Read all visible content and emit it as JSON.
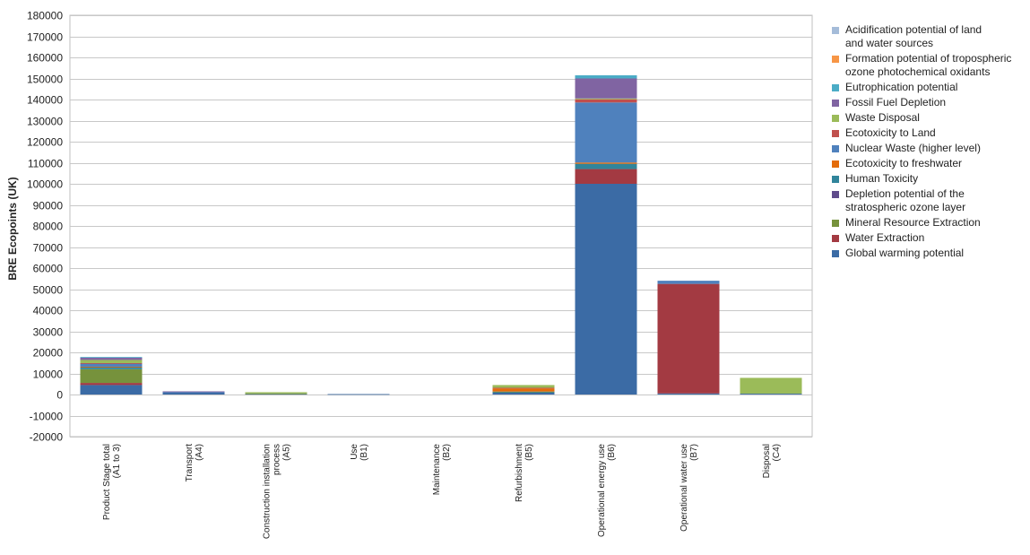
{
  "chart_data": {
    "type": "bar",
    "stacked": true,
    "ylabel": "BRE Ecopoints (UK)",
    "xlabel": "",
    "ylim": [
      -20000,
      180000
    ],
    "ytick_step": 10000,
    "grid": true,
    "legend_position": "right",
    "categories": [
      [
        "Product Stage total",
        "(A1 to 3)"
      ],
      [
        "Transport",
        "(A4)"
      ],
      [
        "Construction installation",
        "process",
        "(A5)"
      ],
      [
        "Use",
        "(B1)"
      ],
      [
        "Maintenance",
        "(B2)"
      ],
      [
        "Refurbishment",
        "(B5)"
      ],
      [
        "Operational energy use",
        "(B6)"
      ],
      [
        "Operational water use",
        "(B7)"
      ],
      [
        "Disposal",
        "(C4)"
      ]
    ],
    "series": [
      {
        "name": "Global warming potential",
        "color": "#3b6ba5",
        "values": [
          4500,
          1000,
          300,
          200,
          0,
          1000,
          100000,
          500,
          400
        ]
      },
      {
        "name": "Water Extraction",
        "color": "#a33a42",
        "values": [
          1000,
          0,
          0,
          0,
          0,
          0,
          7000,
          52000,
          0
        ]
      },
      {
        "name": "Mineral Resource Extraction",
        "color": "#76923c",
        "values": [
          6500,
          0,
          200,
          0,
          0,
          200,
          0,
          0,
          0
        ]
      },
      {
        "name": "Depletion potential of the\nstratospheric ozone layer",
        "color": "#5f4b8b",
        "values": [
          0,
          0,
          0,
          0,
          0,
          0,
          0,
          0,
          0
        ]
      },
      {
        "name": "Human Toxicity",
        "color": "#31859b",
        "values": [
          1000,
          0,
          0,
          0,
          0,
          200,
          2500,
          0,
          0
        ]
      },
      {
        "name": "Ecotoxicity to freshwater",
        "color": "#e46c0a",
        "values": [
          200,
          0,
          0,
          0,
          0,
          1500,
          600,
          0,
          0
        ]
      },
      {
        "name": "Nuclear Waste (higher level)",
        "color": "#4f81bd",
        "values": [
          1500,
          300,
          0,
          0,
          0,
          0,
          28500,
          1500,
          0
        ]
      },
      {
        "name": "Ecotoxicity to Land",
        "color": "#c0504d",
        "values": [
          200,
          0,
          0,
          0,
          0,
          300,
          1500,
          0,
          0
        ]
      },
      {
        "name": "Waste Disposal",
        "color": "#9bbb59",
        "values": [
          1500,
          0,
          600,
          0,
          0,
          1300,
          400,
          0,
          7500
        ]
      },
      {
        "name": "Fossil Fuel Depletion",
        "color": "#8064a2",
        "values": [
          1200,
          200,
          0,
          0,
          0,
          0,
          9500,
          0,
          0
        ]
      },
      {
        "name": "Eutrophication potential",
        "color": "#4bacc6",
        "values": [
          200,
          0,
          0,
          0,
          0,
          0,
          1500,
          0,
          0
        ]
      },
      {
        "name": "Formation potential of tropospheric\nozone photochemical oxidants",
        "color": "#f79646",
        "values": [
          0,
          0,
          0,
          0,
          0,
          0,
          0,
          0,
          0
        ]
      },
      {
        "name": "Acidification potential of land\nand water sources",
        "color": "#a5bcd9",
        "values": [
          0,
          0,
          0,
          0,
          0,
          0,
          0,
          0,
          0
        ]
      }
    ]
  }
}
